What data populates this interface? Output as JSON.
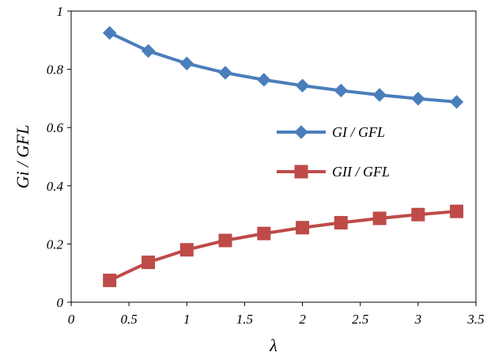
{
  "chart_data": {
    "type": "line",
    "xlabel": "λ",
    "ylabel": "Gi / GFL",
    "xlim": [
      0,
      3.5
    ],
    "ylim": [
      0,
      1
    ],
    "x_ticks": [
      "0",
      "0.5",
      "1",
      "1.5",
      "2",
      "2.5",
      "3",
      "3.5"
    ],
    "y_ticks": [
      "0",
      "0.2",
      "0.4",
      "0.6",
      "0.8",
      "1"
    ],
    "grid": false,
    "legend_position": "right",
    "x": [
      0.333,
      0.667,
      1.0,
      1.333,
      1.667,
      2.0,
      2.333,
      2.667,
      3.0,
      3.333
    ],
    "series": [
      {
        "name": "GI / GFL",
        "color": "#4a7ebb",
        "marker": "diamond",
        "values": [
          0.925,
          0.863,
          0.82,
          0.788,
          0.764,
          0.744,
          0.727,
          0.712,
          0.699,
          0.688
        ]
      },
      {
        "name": "GII / GFL",
        "color": "#be4b48",
        "marker": "square",
        "values": [
          0.075,
          0.137,
          0.18,
          0.212,
          0.236,
          0.256,
          0.273,
          0.288,
          0.301,
          0.312
        ]
      }
    ]
  }
}
